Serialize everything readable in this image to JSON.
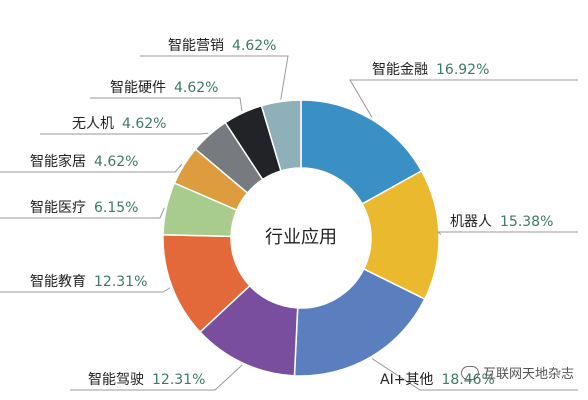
{
  "chart_data": {
    "type": "pie",
    "center_label": "行业应用",
    "slices": [
      {
        "name": "智能金融",
        "value": 16.92,
        "label": "16.92%",
        "color": "#3a8fc4"
      },
      {
        "name": "机器人",
        "value": 15.38,
        "label": "15.38%",
        "color": "#eab92e"
      },
      {
        "name": "AI+其他",
        "value": 18.46,
        "label": "18.46%",
        "color": "#5b7fbe"
      },
      {
        "name": "智能驾驶",
        "value": 12.31,
        "label": "12.31%",
        "color": "#7a4e9f"
      },
      {
        "name": "智能教育",
        "value": 12.31,
        "label": "12.31%",
        "color": "#e4693a"
      },
      {
        "name": "智能医疗",
        "value": 6.15,
        "label": "6.15%",
        "color": "#a8cb8e"
      },
      {
        "name": "智能家居",
        "value": 4.62,
        "label": "4.62%",
        "color": "#dd9c3e"
      },
      {
        "name": "无人机",
        "value": 4.62,
        "label": "4.62%",
        "color": "#777a7e"
      },
      {
        "name": "智能硬件",
        "value": 4.62,
        "label": "4.62%",
        "color": "#222326"
      },
      {
        "name": "智能营销",
        "value": 4.62,
        "label": "4.62%",
        "color": "#8fb0b8"
      }
    ]
  },
  "watermark": "互联网天地杂志",
  "icons": {
    "watermark_logo": "wechat-logo-icon"
  }
}
